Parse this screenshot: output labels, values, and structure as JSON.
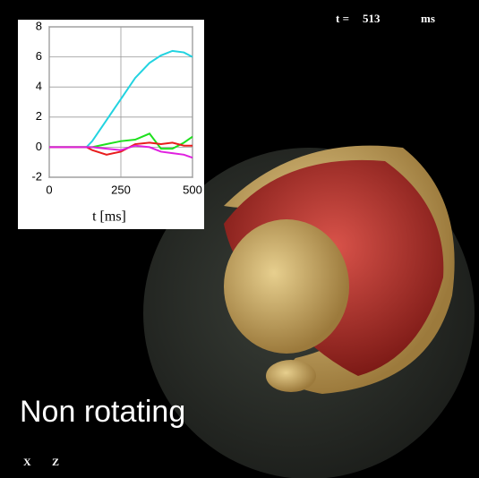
{
  "chart_data": {
    "type": "line",
    "xlabel": "t [ms]",
    "x": [
      0,
      50,
      100,
      130,
      150,
      200,
      250,
      300,
      350,
      390,
      430,
      470,
      500
    ],
    "series": [
      {
        "color": "#22d3e0",
        "values": [
          0,
          0,
          0,
          0,
          0.4,
          1.8,
          3.2,
          4.6,
          5.6,
          6.1,
          6.4,
          6.3,
          6.0
        ]
      },
      {
        "color": "#1ee01e",
        "values": [
          0,
          0,
          0,
          0,
          0,
          0.2,
          0.4,
          0.5,
          0.9,
          -0.1,
          -0.1,
          0.3,
          0.7
        ]
      },
      {
        "color": "#e81c1c",
        "values": [
          0,
          0,
          0,
          0,
          -0.2,
          -0.5,
          -0.3,
          0.2,
          0.3,
          0.2,
          0.3,
          0.1,
          0.1
        ]
      },
      {
        "color": "#e020e0",
        "values": [
          0,
          0,
          0,
          0,
          0,
          -0.1,
          -0.2,
          0.1,
          0,
          -0.3,
          -0.4,
          -0.5,
          -0.7
        ]
      }
    ],
    "xlim": [
      0,
      500
    ],
    "xticks": [
      0,
      250,
      500
    ],
    "ylim": [
      -2,
      8
    ],
    "yticks": [
      -2,
      0,
      2,
      4,
      6,
      8
    ],
    "grid": true
  },
  "time_prefix": "t =",
  "time_value": "513",
  "time_unit": "ms",
  "caption": "Non rotating",
  "axis_x": "X",
  "axis_z": "Z"
}
